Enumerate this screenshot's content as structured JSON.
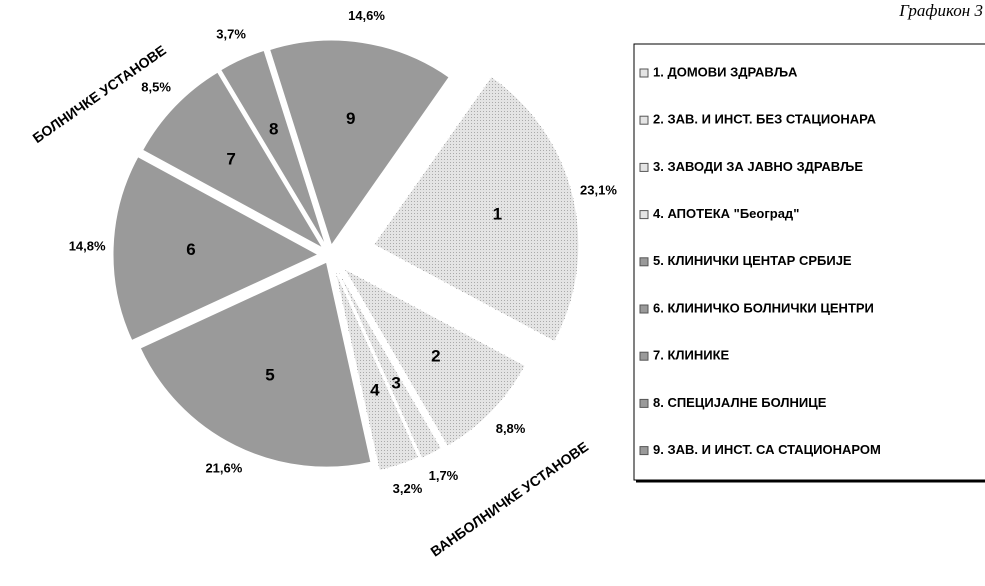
{
  "chart_data": {
    "type": "pie",
    "title": "Графикон 3",
    "annotations": [
      "БОЛНИЧКЕ  УСТАНОВЕ",
      "ВАНБОЛНИЧКЕ  УСТАНОВЕ"
    ],
    "categories": [
      "1.  ДОМОВИ ЗДРАВЉА",
      "2.  ЗАВ. И ИНСТ. БЕЗ СТАЦИОНАРА",
      "3.  ЗАВОДИ ЗА ЈАВНО ЗДРАВЉЕ",
      "4.   АПОТЕКА \"Београд\"",
      "5.  КЛИНИЧКИ ЦЕНТАР СРБИЈЕ",
      "6.  КЛИНИЧКО БОЛНИЧКИ ЦЕНТРИ",
      "7.  КЛИНИКЕ",
      "8.  СПЕЦИЈАЛНЕ  БОЛНИЦЕ",
      "9.  ЗАВ. И  ИНСТ. СА СТАЦИОНАРОМ"
    ],
    "slice_labels": [
      "1",
      "2",
      "3",
      "4",
      "5",
      "6",
      "7",
      "8",
      "9"
    ],
    "values": [
      23.1,
      8.8,
      1.7,
      3.2,
      21.6,
      14.8,
      8.5,
      3.7,
      14.6
    ],
    "value_labels": [
      "23,1%",
      "8,8%",
      "1,7%",
      "3,2%",
      "21,6%",
      "14,8%",
      "8,5%",
      "3,7%",
      "14,6%"
    ],
    "colors": [
      "#e4e4e4",
      "#e4e4e4",
      "#e4e4e4",
      "#e4e4e4",
      "#9a9a9a",
      "#9a9a9a",
      "#9a9a9a",
      "#9a9a9a",
      "#9a9a9a"
    ],
    "legend": "right"
  }
}
